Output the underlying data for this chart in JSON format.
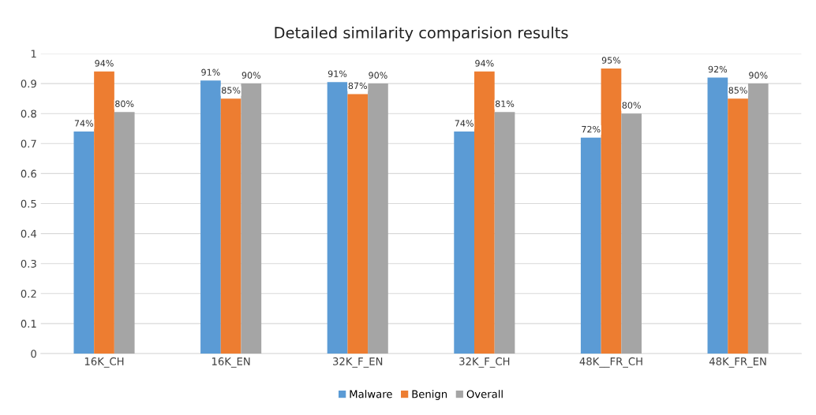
{
  "chart_data": {
    "type": "bar",
    "title": "Detailed similarity comparision results",
    "categories": [
      "16K_CH",
      "16K_EN",
      "32K_F_EN",
      "32K_F_CH",
      "48K__FR_CH",
      "48K_FR_EN"
    ],
    "series": [
      {
        "name": "Malware",
        "color": "#5b9bd5",
        "values": [
          0.74,
          0.91,
          0.905,
          0.74,
          0.72,
          0.92
        ],
        "value_labels": [
          "74%",
          "91%",
          "91%",
          "74%",
          "72%",
          "92%"
        ]
      },
      {
        "name": "Benign",
        "color": "#ed7d31",
        "values": [
          0.94,
          0.85,
          0.865,
          0.94,
          0.95,
          0.85
        ],
        "value_labels": [
          "94%",
          "85%",
          "87%",
          "94%",
          "95%",
          "85%"
        ]
      },
      {
        "name": "Overall",
        "color": "#a5a5a5",
        "values": [
          0.805,
          0.9,
          0.9,
          0.805,
          0.8,
          0.9
        ],
        "value_labels": [
          "80%",
          "90%",
          "90%",
          "81%",
          "80%",
          "90%"
        ]
      }
    ],
    "ylim": [
      0,
      1
    ],
    "yticks": [
      0,
      0.1,
      0.2,
      0.3,
      0.4,
      0.5,
      0.6,
      0.7,
      0.8,
      0.9,
      1
    ],
    "grid": "y",
    "legend": "bottom"
  }
}
